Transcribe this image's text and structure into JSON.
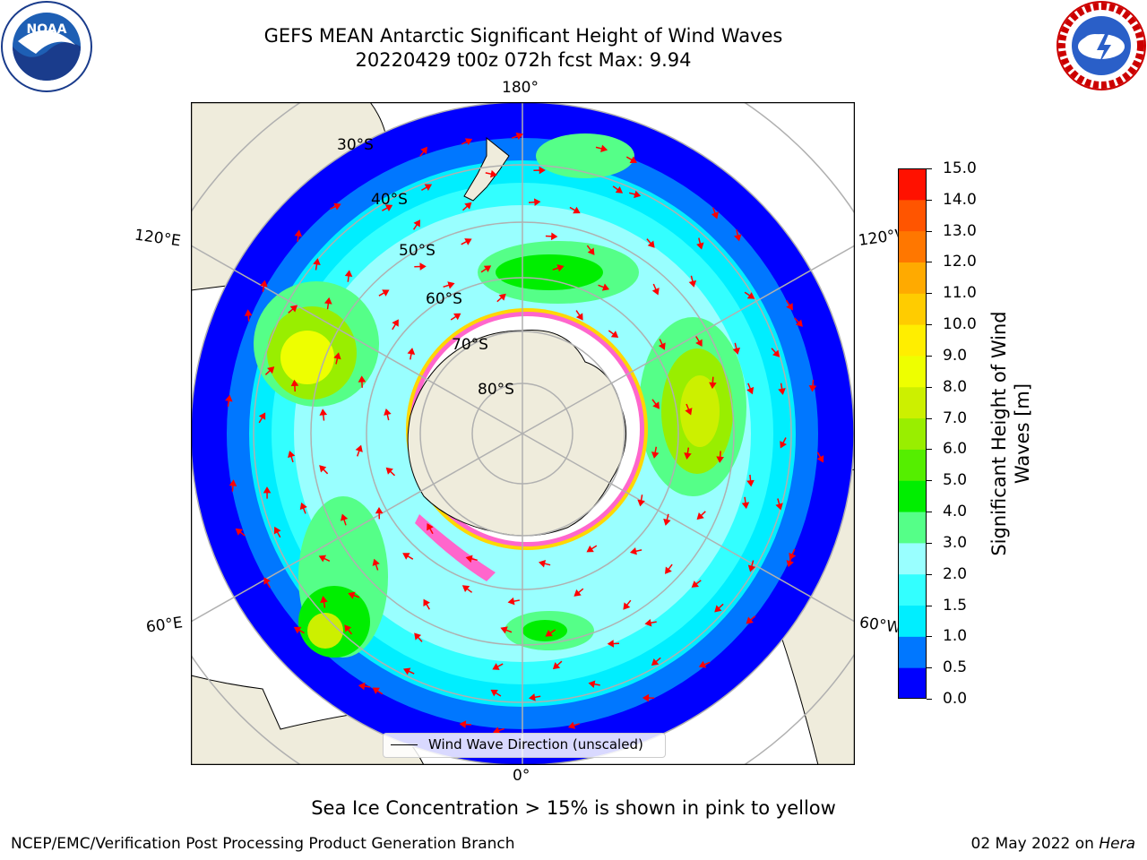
{
  "header": {
    "title_line1": "GEFS MEAN Antarctic Significant Height of Wind Waves",
    "title_line2": "20220429 t00z 072h fcst   Max: 9.94"
  },
  "logos": {
    "left": "NOAA",
    "right": "NATIONAL WEATHER SERVICE"
  },
  "map": {
    "projection": "south-polar-stereographic",
    "lon_labels": {
      "top": "180°",
      "bottom": "0°",
      "upper_left": "120°E",
      "upper_right": "120°W",
      "lower_left": "60°E",
      "lower_right": "60°W"
    },
    "lat_labels": [
      "30°S",
      "40°S",
      "50°S",
      "60°S",
      "70°S",
      "80°S"
    ],
    "legend": "Wind Wave Direction (unscaled)",
    "arrow_color": "#ff0000",
    "land_color": "#efecdc",
    "sea_ice_colors": [
      "#ff66cc",
      "#ffd700"
    ]
  },
  "colorbar": {
    "label": "Significant Height of Wind Waves [m]",
    "ticks": [
      "0.0",
      "0.5",
      "1.0",
      "1.5",
      "2.0",
      "3.0",
      "4.0",
      "5.0",
      "6.0",
      "7.0",
      "8.0",
      "9.0",
      "10.0",
      "11.0",
      "12.0",
      "13.0",
      "14.0",
      "15.0"
    ],
    "colors": [
      "#0000ff",
      "#0077ff",
      "#00eeff",
      "#33ffff",
      "#99ffff",
      "#55ff88",
      "#00ee00",
      "#55ee00",
      "#99ee00",
      "#ccf000",
      "#eeff00",
      "#ffee00",
      "#ffcc00",
      "#ffaa00",
      "#ff7700",
      "#ff5500",
      "#ff1100"
    ]
  },
  "subcaption": "Sea Ice Concentration > 15% is shown in pink to yellow",
  "footer": {
    "left": "NCEP/EMC/Verification Post Processing Product Generation Branch",
    "right_prefix": "02 May 2022 on ",
    "right_italic": "Hera"
  }
}
